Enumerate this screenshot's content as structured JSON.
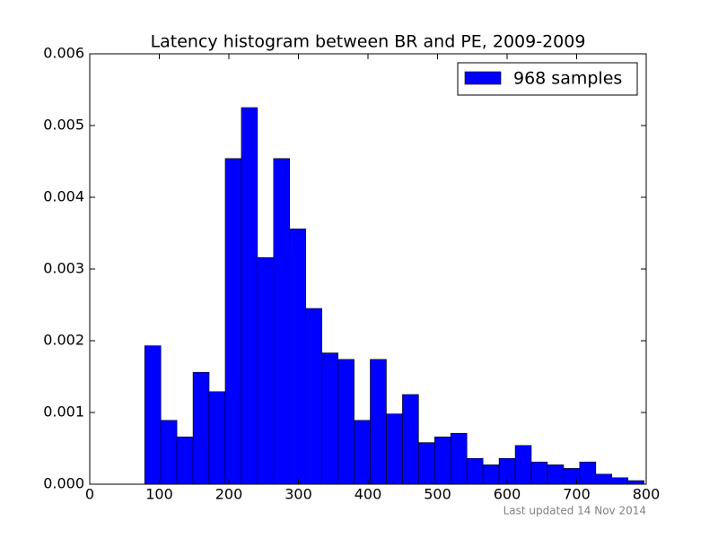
{
  "chart_data": {
    "type": "histogram",
    "title": "Latency histogram between BR and PE, 2009-2009",
    "bins": [
      79,
      102.2,
      125.3,
      148.5,
      171.6,
      194.8,
      218.0,
      241.1,
      264.3,
      287.4,
      310.6,
      333.8,
      356.9,
      380.1,
      403.2,
      426.4,
      449.6,
      472.7,
      495.9,
      519.0,
      542.2,
      565.4,
      588.5,
      611.7,
      634.8,
      658.0,
      681.2,
      704.3,
      727.5,
      750.6,
      773.8,
      797.0
    ],
    "series": [
      {
        "name": "968 samples",
        "color": "#0000ff",
        "values": [
          0.00193,
          0.00089,
          0.00066,
          0.00156,
          0.00129,
          0.00454,
          0.00525,
          0.00316,
          0.00454,
          0.00356,
          0.00245,
          0.00183,
          0.00174,
          0.00089,
          0.00174,
          0.00098,
          0.00125,
          0.00058,
          0.00066,
          0.00071,
          0.00036,
          0.00027,
          0.00036,
          0.00054,
          0.00031,
          0.00027,
          0.00022,
          0.00031,
          0.00014,
          9e-05,
          5e-05
        ]
      }
    ],
    "xlim": [
      0,
      800
    ],
    "xticks": [
      0,
      100,
      200,
      300,
      400,
      500,
      600,
      700,
      800
    ],
    "ylim": [
      0,
      0.006
    ],
    "yticks": [
      {
        "value": 0,
        "label": "0.000"
      },
      {
        "value": 0.001,
        "label": "0.001"
      },
      {
        "value": 0.002,
        "label": "0.002"
      },
      {
        "value": 0.003,
        "label": "0.003"
      },
      {
        "value": 0.004,
        "label": "0.004"
      },
      {
        "value": 0.005,
        "label": "0.005"
      },
      {
        "value": 0.006,
        "label": "0.006"
      }
    ],
    "legend": "upper right"
  },
  "footer": "Last updated 14 Nov 2014"
}
